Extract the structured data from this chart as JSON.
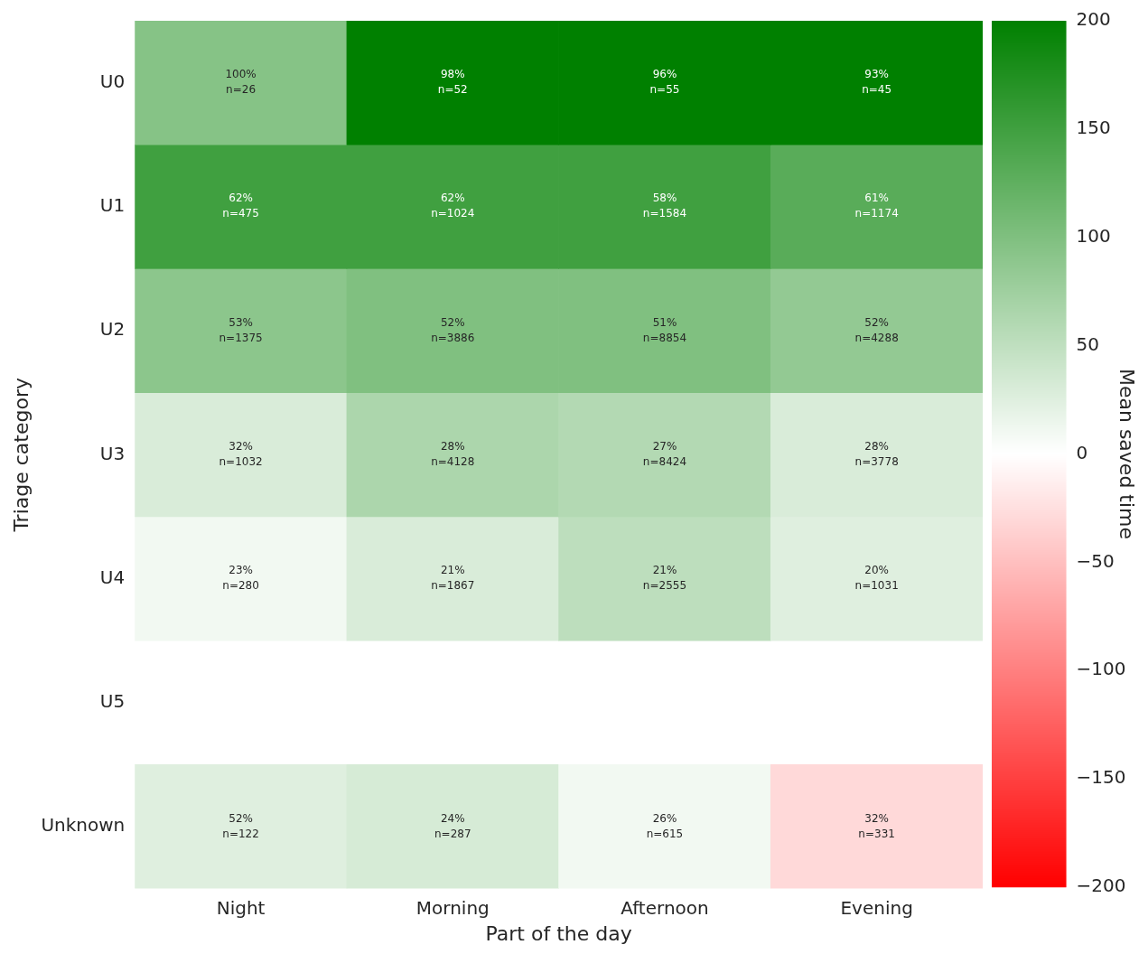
{
  "chart_data": {
    "type": "heatmap",
    "xlabel": "Part of the day",
    "ylabel": "Triage category",
    "clabel": "Mean saved time",
    "categories": [
      "Night",
      "Morning",
      "Afternoon",
      "Evening"
    ],
    "y_categories": [
      "U0",
      "U1",
      "U2",
      "U3",
      "U4",
      "U5",
      "Unknown"
    ],
    "cells": [
      [
        95,
        200,
        200,
        200
      ],
      [
        150,
        150,
        150,
        130
      ],
      [
        90,
        100,
        100,
        85
      ],
      [
        30,
        65,
        60,
        30
      ],
      [
        10,
        30,
        52,
        25
      ],
      [
        null,
        null,
        null,
        null
      ],
      [
        25,
        32,
        10,
        -30
      ]
    ],
    "cell_labels": [
      [
        "100%\nn=26",
        "98%\nn=52",
        "96%\nn=55",
        "93%\nn=45"
      ],
      [
        "62%\nn=475",
        "62%\nn=1024",
        "58%\nn=1584",
        "61%\nn=1174"
      ],
      [
        "53%\nn=1375",
        "52%\nn=3886",
        "51%\nn=8854",
        "52%\nn=4288"
      ],
      [
        "32%\nn=1032",
        "28%\nn=4128",
        "27%\nn=8424",
        "28%\nn=3778"
      ],
      [
        "23%\nn=280",
        "21%\nn=1867",
        "21%\nn=2555",
        "20%\nn=1031"
      ],
      [
        null,
        null,
        null,
        null
      ],
      [
        "52%\nn=122",
        "24%\nn=287",
        "26%\nn=615",
        "32%\nn=331"
      ]
    ],
    "clim": [
      -200,
      200
    ],
    "cticks": [
      {
        "value": -200,
        "label": "−200"
      },
      {
        "value": -150,
        "label": "−150"
      },
      {
        "value": -100,
        "label": "−100"
      },
      {
        "value": -50,
        "label": "−50"
      },
      0,
      50,
      100,
      150,
      200
    ]
  }
}
